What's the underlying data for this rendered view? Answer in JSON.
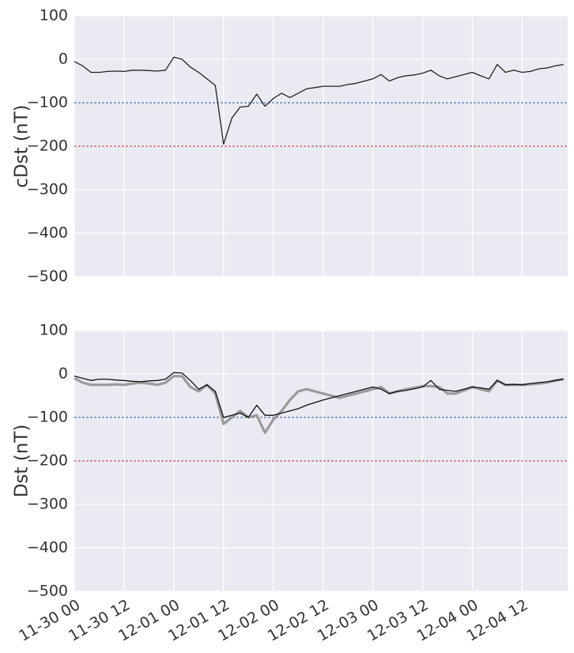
{
  "chart_data": [
    {
      "type": "line",
      "ylabel": "cDst (nT)",
      "x": [
        "11-30 00",
        "11-30 02",
        "11-30 04",
        "11-30 06",
        "11-30 08",
        "11-30 10",
        "11-30 12",
        "11-30 14",
        "11-30 16",
        "11-30 18",
        "11-30 20",
        "11-30 22",
        "12-01 00",
        "12-01 02",
        "12-01 04",
        "12-01 06",
        "12-01 08",
        "12-01 10",
        "12-01 12",
        "12-01 14",
        "12-01 16",
        "12-01 18",
        "12-01 20",
        "12-01 22",
        "12-02 00",
        "12-02 02",
        "12-02 04",
        "12-02 06",
        "12-02 08",
        "12-02 10",
        "12-02 12",
        "12-02 14",
        "12-02 16",
        "12-02 18",
        "12-02 20",
        "12-02 22",
        "12-03 00",
        "12-03 02",
        "12-03 04",
        "12-03 06",
        "12-03 08",
        "12-03 10",
        "12-03 12",
        "12-03 14",
        "12-03 16",
        "12-03 18",
        "12-03 20",
        "12-03 22",
        "12-04 00",
        "12-04 02",
        "12-04 04",
        "12-04 06",
        "12-04 08",
        "12-04 10",
        "12-04 12",
        "12-04 14",
        "12-04 16",
        "12-04 18",
        "12-04 20",
        "12-04 22"
      ],
      "series": [
        {
          "color": "#222222",
          "width": 1.3,
          "values": [
            -5,
            -15,
            -30,
            -30,
            -28,
            -27,
            -28,
            -25,
            -25,
            -26,
            -27,
            -25,
            5,
            0,
            -18,
            -30,
            -45,
            -60,
            -195,
            -135,
            -110,
            -108,
            -80,
            -108,
            -90,
            -78,
            -88,
            -78,
            -68,
            -65,
            -62,
            -62,
            -62,
            -58,
            -55,
            -50,
            -45,
            -35,
            -50,
            -42,
            -38,
            -36,
            -32,
            -25,
            -38,
            -45,
            -40,
            -35,
            -30,
            -38,
            -45,
            -12,
            -30,
            -25,
            -30,
            -28,
            -22,
            -20,
            -15,
            -12
          ]
        }
      ],
      "hlines": [
        {
          "value": -100,
          "color": "#4c72b0"
        },
        {
          "value": -200,
          "color": "#c44e52"
        }
      ],
      "xlim": [
        "11-30 00",
        "12-04 23"
      ],
      "xticks": [
        "11-30 00",
        "11-30 12",
        "12-01 00",
        "12-01 12",
        "12-02 00",
        "12-02 12",
        "12-03 00",
        "12-03 12",
        "12-04 00",
        "12-04 12"
      ],
      "show_xtick_labels": false,
      "ylim": [
        -500,
        100
      ],
      "yticks": [
        {
          "value": -500,
          "label": "−500"
        },
        {
          "value": -400,
          "label": "−400"
        },
        {
          "value": -300,
          "label": "−300"
        },
        {
          "value": -200,
          "label": "−200"
        },
        {
          "value": -100,
          "label": "−100"
        },
        0,
        100
      ],
      "grid": true
    },
    {
      "type": "line",
      "ylabel": "Dst (nT)",
      "x": [
        "11-30 00",
        "11-30 02",
        "11-30 04",
        "11-30 06",
        "11-30 08",
        "11-30 10",
        "11-30 12",
        "11-30 14",
        "11-30 16",
        "11-30 18",
        "11-30 20",
        "11-30 22",
        "12-01 00",
        "12-01 02",
        "12-01 04",
        "12-01 06",
        "12-01 08",
        "12-01 10",
        "12-01 12",
        "12-01 14",
        "12-01 16",
        "12-01 18",
        "12-01 20",
        "12-01 22",
        "12-02 00",
        "12-02 02",
        "12-02 04",
        "12-02 06",
        "12-02 08",
        "12-02 10",
        "12-02 12",
        "12-02 14",
        "12-02 16",
        "12-02 18",
        "12-02 20",
        "12-02 22",
        "12-03 00",
        "12-03 02",
        "12-03 04",
        "12-03 06",
        "12-03 08",
        "12-03 10",
        "12-03 12",
        "12-03 14",
        "12-03 16",
        "12-03 18",
        "12-03 20",
        "12-03 22",
        "12-04 00",
        "12-04 02",
        "12-04 04",
        "12-04 06",
        "12-04 08",
        "12-04 10",
        "12-04 12",
        "12-04 14",
        "12-04 16",
        "12-04 18",
        "12-04 20",
        "12-04 22"
      ],
      "series": [
        {
          "color": "#9a9a9a",
          "width": 3.2,
          "values": [
            -10,
            -20,
            -25,
            -25,
            -25,
            -24,
            -25,
            -22,
            -20,
            -22,
            -25,
            -20,
            -5,
            -5,
            -30,
            -40,
            -25,
            -45,
            -115,
            -100,
            -85,
            -100,
            -95,
            -135,
            -105,
            -85,
            -60,
            -40,
            -35,
            -40,
            -45,
            -50,
            -55,
            -50,
            -45,
            -40,
            -35,
            -30,
            -45,
            -40,
            -35,
            -32,
            -28,
            -28,
            -30,
            -45,
            -45,
            -38,
            -30,
            -35,
            -40,
            -15,
            -25,
            -25,
            -25,
            -24,
            -22,
            -20,
            -15,
            -12
          ]
        },
        {
          "color": "#111111",
          "width": 1.3,
          "values": [
            -5,
            -10,
            -15,
            -12,
            -12,
            -14,
            -15,
            -17,
            -18,
            -16,
            -15,
            -12,
            3,
            2,
            -15,
            -35,
            -25,
            -40,
            -100,
            -95,
            -90,
            -100,
            -72,
            -95,
            -95,
            -90,
            -85,
            -80,
            -72,
            -66,
            -60,
            -55,
            -50,
            -45,
            -40,
            -35,
            -30,
            -35,
            -45,
            -40,
            -38,
            -34,
            -30,
            -15,
            -35,
            -38,
            -40,
            -35,
            -30,
            -32,
            -35,
            -15,
            -25,
            -24,
            -25,
            -22,
            -20,
            -18,
            -15,
            -12
          ]
        }
      ],
      "hlines": [
        {
          "value": -100,
          "color": "#4c72b0"
        },
        {
          "value": -200,
          "color": "#c44e52"
        }
      ],
      "xlim": [
        "11-30 00",
        "12-04 23"
      ],
      "xticks": [
        "11-30 00",
        "11-30 12",
        "12-01 00",
        "12-01 12",
        "12-02 00",
        "12-02 12",
        "12-03 00",
        "12-03 12",
        "12-04 00",
        "12-04 12"
      ],
      "show_xtick_labels": true,
      "ylim": [
        -500,
        100
      ],
      "yticks": [
        {
          "value": -500,
          "label": "−500"
        },
        {
          "value": -400,
          "label": "−400"
        },
        {
          "value": -300,
          "label": "−300"
        },
        {
          "value": -200,
          "label": "−200"
        },
        {
          "value": -100,
          "label": "−100"
        },
        0,
        100
      ],
      "grid": true
    }
  ]
}
